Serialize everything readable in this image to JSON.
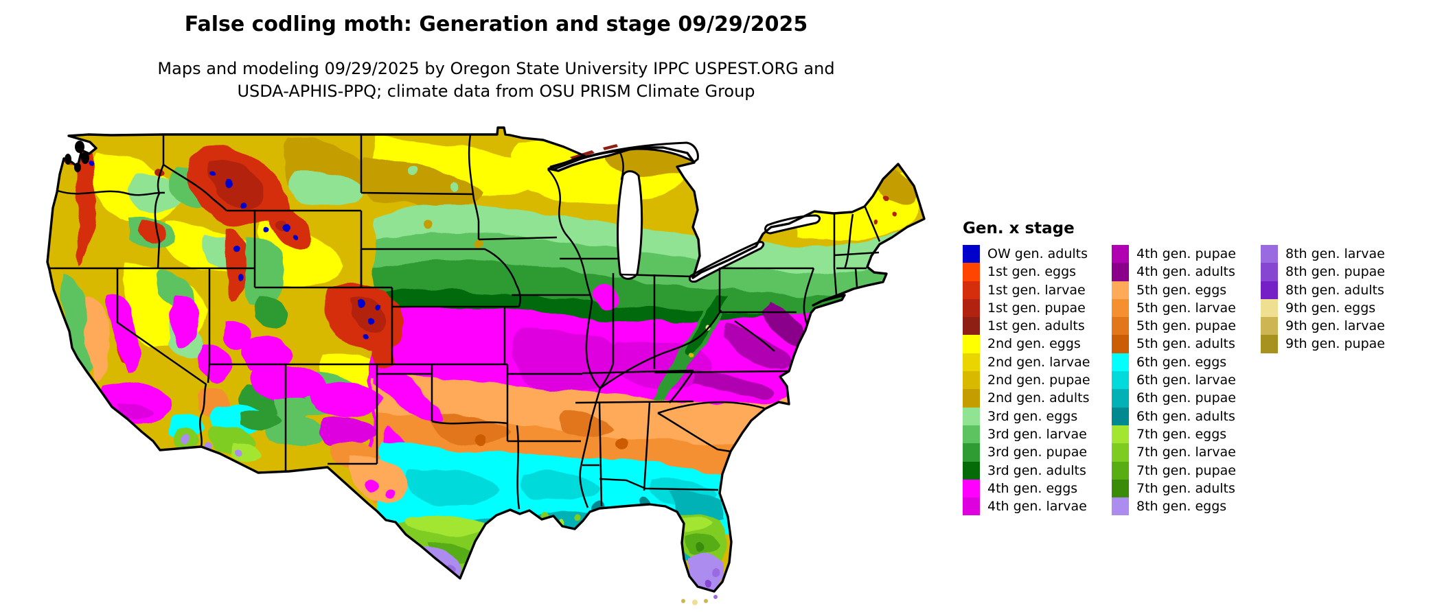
{
  "header": {
    "title": "False codling moth: Generation and stage 09/29/2025",
    "subtitle_line1": "Maps and modeling 09/29/2025 by Oregon State University IPPC USPEST.ORG and",
    "subtitle_line2": "USDA-APHIS-PPQ; climate data from OSU PRISM Climate Group"
  },
  "legend": {
    "title": "Gen. x stage",
    "items": [
      {
        "label": "OW gen. adults",
        "color_key": "ow_adults"
      },
      {
        "label": "1st gen. eggs",
        "color_key": "g1_eggs"
      },
      {
        "label": "1st gen. larvae",
        "color_key": "g1_larvae"
      },
      {
        "label": "1st gen. pupae",
        "color_key": "g1_pupae"
      },
      {
        "label": "1st gen. adults",
        "color_key": "g1_adults"
      },
      {
        "label": "2nd gen. eggs",
        "color_key": "g2_eggs"
      },
      {
        "label": "2nd gen. larvae",
        "color_key": "g2_larvae"
      },
      {
        "label": "2nd gen. pupae",
        "color_key": "g2_pupae"
      },
      {
        "label": "2nd gen. adults",
        "color_key": "g2_adults"
      },
      {
        "label": "3rd gen. eggs",
        "color_key": "g3_eggs"
      },
      {
        "label": "3rd gen. larvae",
        "color_key": "g3_larvae"
      },
      {
        "label": "3rd gen. pupae",
        "color_key": "g3_pupae"
      },
      {
        "label": "3rd gen. adults",
        "color_key": "g3_adults"
      },
      {
        "label": "4th gen. eggs",
        "color_key": "g4_eggs"
      },
      {
        "label": "4th gen. larvae",
        "color_key": "g4_larvae"
      },
      {
        "label": "4th gen. pupae",
        "color_key": "g4_pupae"
      },
      {
        "label": "4th gen. adults",
        "color_key": "g4_adults"
      },
      {
        "label": "5th gen. eggs",
        "color_key": "g5_eggs"
      },
      {
        "label": "5th gen. larvae",
        "color_key": "g5_larvae"
      },
      {
        "label": "5th gen. pupae",
        "color_key": "g5_pupae"
      },
      {
        "label": "5th gen. adults",
        "color_key": "g5_adults"
      },
      {
        "label": "6th gen. eggs",
        "color_key": "g6_eggs"
      },
      {
        "label": "6th gen. larvae",
        "color_key": "g6_larvae"
      },
      {
        "label": "6th gen. pupae",
        "color_key": "g6_pupae"
      },
      {
        "label": "6th gen. adults",
        "color_key": "g6_adults"
      },
      {
        "label": "7th gen. eggs",
        "color_key": "g7_eggs"
      },
      {
        "label": "7th gen. larvae",
        "color_key": "g7_larvae"
      },
      {
        "label": "7th gen. pupae",
        "color_key": "g7_pupae"
      },
      {
        "label": "7th gen. adults",
        "color_key": "g7_adults"
      },
      {
        "label": "8th gen. eggs",
        "color_key": "g8_eggs"
      },
      {
        "label": "8th gen. larvae",
        "color_key": "g8_larvae"
      },
      {
        "label": "8th gen. pupae",
        "color_key": "g8_pupae"
      },
      {
        "label": "8th gen. adults",
        "color_key": "g8_adults"
      },
      {
        "label": "9th gen. eggs",
        "color_key": "g9_eggs"
      },
      {
        "label": "9th gen. larvae",
        "color_key": "g9_larvae"
      },
      {
        "label": "9th gen. pupae",
        "color_key": "g9_pupae"
      }
    ]
  },
  "colors": {
    "ow_adults": "#0000CD",
    "g1_eggs": "#FF4500",
    "g1_larvae": "#D52E0C",
    "g1_pupae": "#B22210",
    "g1_adults": "#8E1F14",
    "g2_eggs": "#FFFF00",
    "g2_larvae": "#EBD500",
    "g2_pupae": "#D9B900",
    "g2_adults": "#C49E00",
    "g3_eggs": "#8FE393",
    "g3_larvae": "#5CC360",
    "g3_pupae": "#2E9B33",
    "g3_adults": "#056A08",
    "g4_eggs": "#FF00FF",
    "g4_larvae": "#DE00DE",
    "g4_pupae": "#B100B1",
    "g4_adults": "#8B008B",
    "g5_eggs": "#FFAA58",
    "g5_larvae": "#F59030",
    "g5_pupae": "#E2761A",
    "g5_adults": "#CB5D06",
    "g6_eggs": "#00FFFF",
    "g6_larvae": "#00DADA",
    "g6_pupae": "#00B2B5",
    "g6_adults": "#008A90",
    "g7_eggs": "#A2E632",
    "g7_larvae": "#7FCC20",
    "g7_pupae": "#57AD12",
    "g7_adults": "#3A8B08",
    "g8_eggs": "#AD8CF0",
    "g8_larvae": "#9A6AE0",
    "g8_pupae": "#8746D2",
    "g8_adults": "#7420C6",
    "g9_eggs": "#EFDF90",
    "g9_larvae": "#CDB554",
    "g9_pupae": "#A8921F",
    "border": "#000000",
    "water": "#FFFFFF"
  },
  "map": {
    "area": "Contiguous United States raster map, generation x life stage of false codling moth",
    "bands_north_to_south": [
      {
        "region": "Northern tier (ND/MN/WI/upper MI, Maine, northern Rockies plains)",
        "dominant": "2nd gen. eggs-adults (yellow to gold)"
      },
      {
        "region": "SD / southern MN-WI / MI / NY / New England",
        "dominant": "3rd gen. eggs-adults (light to dark green)"
      },
      {
        "region": "NE/KS/MO/IL/IN/OH/KY/TN/VA corridor",
        "dominant": "4th gen. eggs-adults (magenta to purple)"
      },
      {
        "region": "OK / AR / northern TX / northern MS-AL-GA / NC-SC",
        "dominant": "5th gen. eggs-adults (orange)"
      },
      {
        "region": "Central TX / LA / Gulf coast / northern FL",
        "dominant": "6th gen. eggs-adults (cyan to teal)"
      },
      {
        "region": "South TX and central FL",
        "dominant": "7th gen. eggs-adults (yellow-green)"
      },
      {
        "region": "Far south TX tip and south FL",
        "dominant": "8th gen. (light purple)"
      },
      {
        "region": "Florida Keys specks",
        "dominant": "9th gen. (khaki)"
      },
      {
        "region": "Western mountains",
        "dominant": "1st gen. (reds) with OW gen. adults (blue) at highest elevations"
      },
      {
        "region": "Southwest deserts (CA/AZ/NM/NV)",
        "dominant": "mosaic of 4th-8th gen."
      }
    ]
  }
}
